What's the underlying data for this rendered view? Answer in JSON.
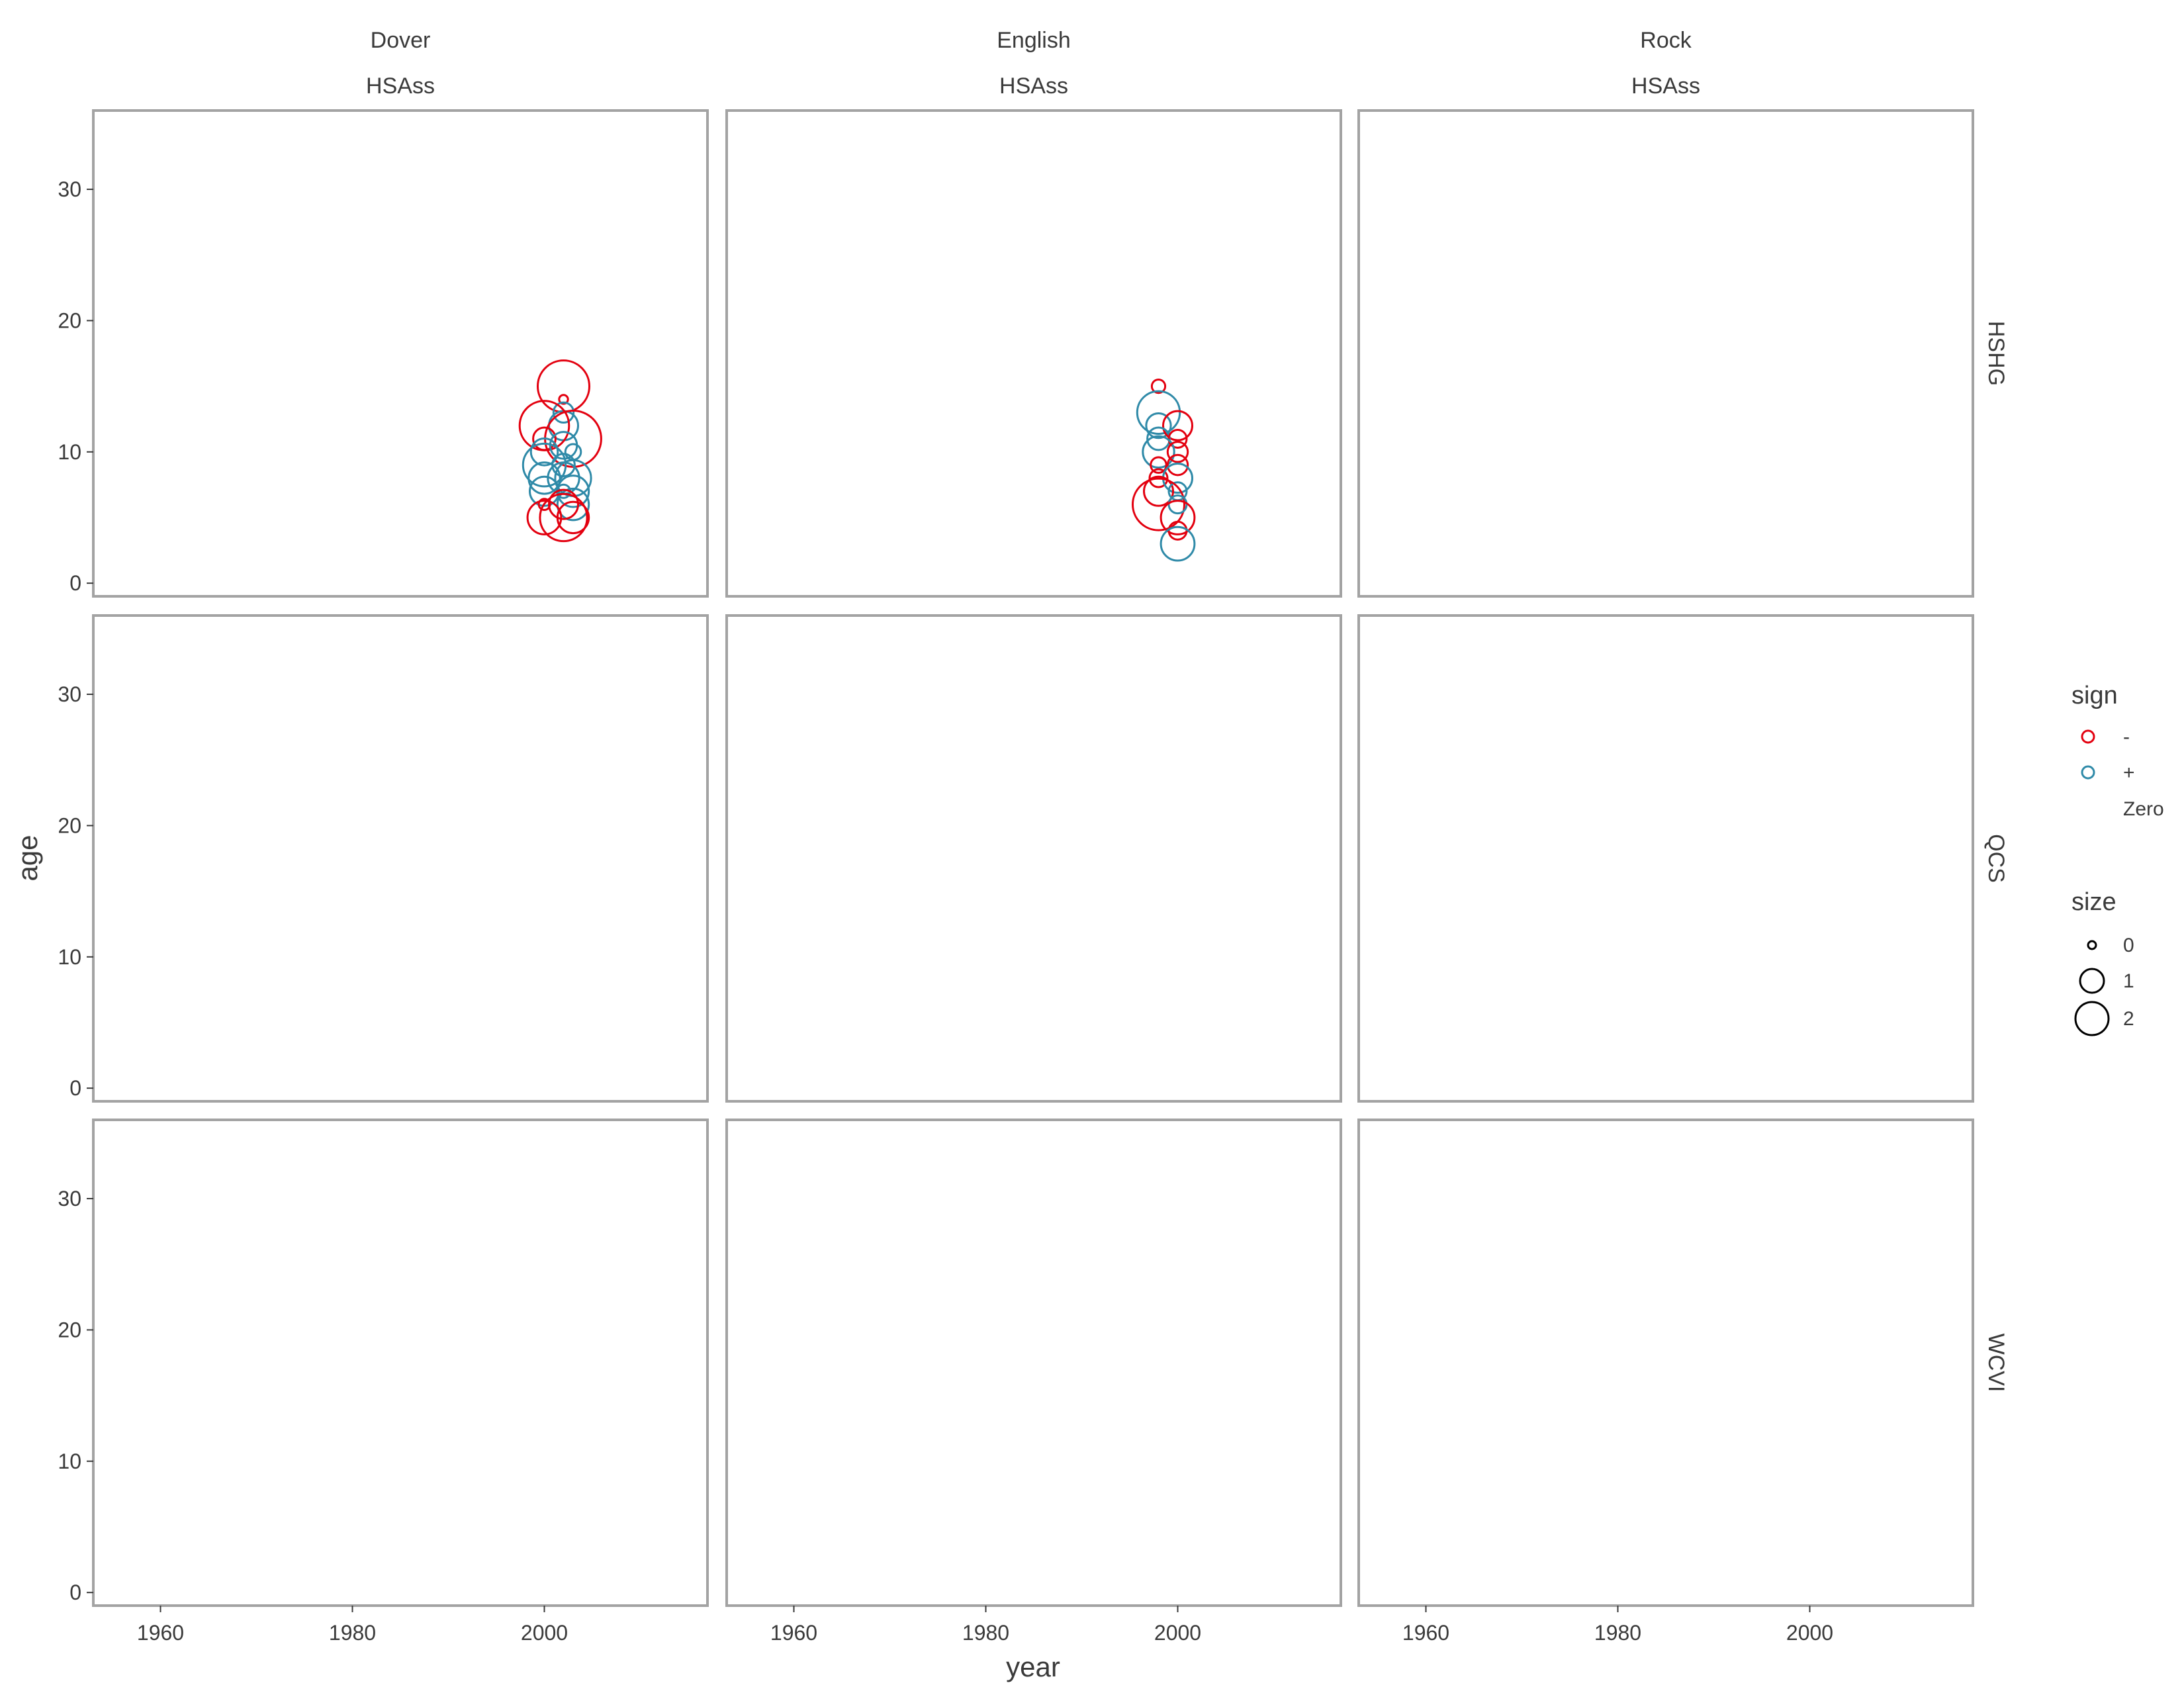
{
  "chart_data": {
    "type": "scatter",
    "xlabel": "year",
    "ylabel": "age",
    "xlim": [
      1953,
      2017
    ],
    "ylim": [
      -1,
      36
    ],
    "x_ticks": [
      "1960",
      "1980",
      "2000"
    ],
    "y_ticks": [
      "0",
      "10",
      "20",
      "30"
    ],
    "columns": [
      {
        "name": "Dover",
        "sub": "HSAss"
      },
      {
        "name": "English",
        "sub": "HSAss"
      },
      {
        "name": "Rock",
        "sub": "HSAss"
      }
    ],
    "rows": [
      "HSHG",
      "QCS",
      "WCVI"
    ],
    "colors": {
      "neg": "#e3000f",
      "pos": "#2f8aa8",
      "panel_border": "#a3a3a3"
    },
    "legend": {
      "sign_title": "sign",
      "sign_items": [
        {
          "label": "-",
          "color": "#e3000f"
        },
        {
          "label": "+",
          "color": "#2f8aa8"
        },
        {
          "label": "Zero",
          "color": ""
        }
      ],
      "size_title": "size",
      "size_items": [
        {
          "label": "0",
          "value": 0
        },
        {
          "label": "1",
          "value": 1
        },
        {
          "label": "2",
          "value": 2
        }
      ]
    },
    "panels": [
      {
        "column": "Dover",
        "row": "HSHG",
        "points": [
          {
            "year": 2002,
            "age": 15,
            "sign": "-",
            "size": 2.0
          },
          {
            "year": 2002,
            "age": 14,
            "sign": "-",
            "size": 0.1
          },
          {
            "year": 2002,
            "age": 13,
            "sign": "+",
            "size": 0.6
          },
          {
            "year": 2002,
            "age": 12,
            "sign": "+",
            "size": 1.0
          },
          {
            "year": 2000,
            "age": 12,
            "sign": "-",
            "size": 1.9
          },
          {
            "year": 2003,
            "age": 11,
            "sign": "-",
            "size": 2.2
          },
          {
            "year": 2000,
            "age": 11,
            "sign": "-",
            "size": 0.7
          },
          {
            "year": 2002,
            "age": 10.5,
            "sign": "+",
            "size": 0.9
          },
          {
            "year": 2000,
            "age": 10,
            "sign": "+",
            "size": 0.9
          },
          {
            "year": 2003,
            "age": 10,
            "sign": "+",
            "size": 0.4
          },
          {
            "year": 2000,
            "age": 9,
            "sign": "+",
            "size": 1.6
          },
          {
            "year": 2002,
            "age": 9,
            "sign": "+",
            "size": 0.7
          },
          {
            "year": 2002,
            "age": 8,
            "sign": "+",
            "size": 1.1
          },
          {
            "year": 2003,
            "age": 8,
            "sign": "+",
            "size": 1.3
          },
          {
            "year": 2000,
            "age": 8,
            "sign": "+",
            "size": 1.1
          },
          {
            "year": 2003,
            "age": 7,
            "sign": "+",
            "size": 1.1
          },
          {
            "year": 2000,
            "age": 7,
            "sign": "+",
            "size": 1.0
          },
          {
            "year": 2002,
            "age": 7,
            "sign": "+",
            "size": 0.3
          },
          {
            "year": 2003,
            "age": 6,
            "sign": "+",
            "size": 1.1
          },
          {
            "year": 2000,
            "age": 6,
            "sign": "-",
            "size": 0.2
          },
          {
            "year": 2002,
            "age": 6,
            "sign": "-",
            "size": 1.0
          },
          {
            "year": 2000,
            "age": 5,
            "sign": "-",
            "size": 1.2
          },
          {
            "year": 2003,
            "age": 5,
            "sign": "-",
            "size": 1.1
          },
          {
            "year": 2002,
            "age": 5,
            "sign": "-",
            "size": 1.8
          }
        ]
      },
      {
        "column": "English",
        "row": "HSHG",
        "points": [
          {
            "year": 1998,
            "age": 15,
            "sign": "-",
            "size": 0.3
          },
          {
            "year": 1998,
            "age": 13,
            "sign": "+",
            "size": 1.6
          },
          {
            "year": 1998,
            "age": 12,
            "sign": "+",
            "size": 0.8
          },
          {
            "year": 2000,
            "age": 12,
            "sign": "-",
            "size": 1.0
          },
          {
            "year": 1998,
            "age": 11,
            "sign": "+",
            "size": 0.7
          },
          {
            "year": 2000,
            "age": 11,
            "sign": "-",
            "size": 0.5
          },
          {
            "year": 1998,
            "age": 10,
            "sign": "+",
            "size": 1.1
          },
          {
            "year": 2000,
            "age": 10,
            "sign": "-",
            "size": 0.6
          },
          {
            "year": 1998,
            "age": 9,
            "sign": "-",
            "size": 0.4
          },
          {
            "year": 2000,
            "age": 9,
            "sign": "-",
            "size": 0.6
          },
          {
            "year": 1998,
            "age": 8,
            "sign": "-",
            "size": 0.5
          },
          {
            "year": 2000,
            "age": 8,
            "sign": "+",
            "size": 1.0
          },
          {
            "year": 1998,
            "age": 7,
            "sign": "-",
            "size": 1.0
          },
          {
            "year": 2000,
            "age": 7,
            "sign": "+",
            "size": 0.5
          },
          {
            "year": 1998,
            "age": 6,
            "sign": "-",
            "size": 2.0
          },
          {
            "year": 2000,
            "age": 6,
            "sign": "+",
            "size": 0.5
          },
          {
            "year": 2000,
            "age": 5,
            "sign": "-",
            "size": 1.2
          },
          {
            "year": 2000,
            "age": 4,
            "sign": "-",
            "size": 0.5
          },
          {
            "year": 2000,
            "age": 3,
            "sign": "+",
            "size": 1.2
          }
        ]
      }
    ]
  }
}
